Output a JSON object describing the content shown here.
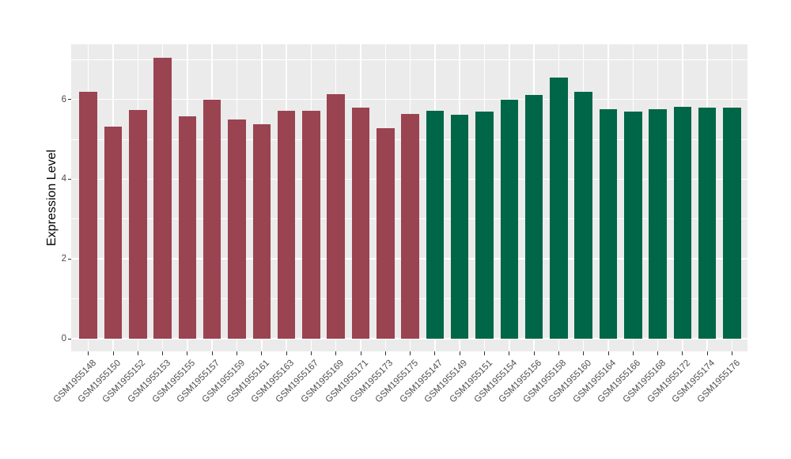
{
  "figure": {
    "background": "#FFFFFF",
    "panel_background": "#EBEBEB",
    "grid_color": "#FFFFFF",
    "tick_mark_color": "#333333",
    "axis_text_color": "#4D4D4D",
    "axis_title_color": "#000000"
  },
  "chart_data": {
    "type": "bar",
    "title": "",
    "xlabel": "",
    "ylabel": "Expression Level",
    "ylim": [
      -0.32,
      7.38
    ],
    "yticks": [
      0,
      2,
      4,
      6
    ],
    "yticks_minor": [
      1,
      3,
      5,
      7
    ],
    "grid": true,
    "legend_position": "none",
    "x_label_rotation_deg": 45,
    "group_colors": {
      "left_group": "#9A4351",
      "right_group": "#006648"
    },
    "categories": [
      "GSM1955148",
      "GSM1955150",
      "GSM1955152",
      "GSM1955153",
      "GSM1955155",
      "GSM1955157",
      "GSM1955159",
      "GSM1955161",
      "GSM1955163",
      "GSM1955167",
      "GSM1955169",
      "GSM1955171",
      "GSM1955173",
      "GSM1955175",
      "GSM1955147",
      "GSM1955149",
      "GSM1955151",
      "GSM1955154",
      "GSM1955156",
      "GSM1955158",
      "GSM1955160",
      "GSM1955164",
      "GSM1955166",
      "GSM1955168",
      "GSM1955172",
      "GSM1955174",
      "GSM1955176"
    ],
    "values": [
      6.2,
      5.32,
      5.74,
      7.04,
      5.57,
      6.0,
      5.49,
      5.37,
      5.72,
      5.72,
      6.13,
      5.8,
      5.28,
      5.63,
      5.72,
      5.62,
      5.69,
      6.0,
      6.12,
      6.55,
      6.2,
      5.76,
      5.69,
      5.76,
      5.81,
      5.79,
      5.79
    ],
    "bar_colors": [
      "#9A4351",
      "#9A4351",
      "#9A4351",
      "#9A4351",
      "#9A4351",
      "#9A4351",
      "#9A4351",
      "#9A4351",
      "#9A4351",
      "#9A4351",
      "#9A4351",
      "#9A4351",
      "#9A4351",
      "#9A4351",
      "#006648",
      "#006648",
      "#006648",
      "#006648",
      "#006648",
      "#006648",
      "#006648",
      "#006648",
      "#006648",
      "#006648",
      "#006648",
      "#006648",
      "#006648"
    ]
  }
}
